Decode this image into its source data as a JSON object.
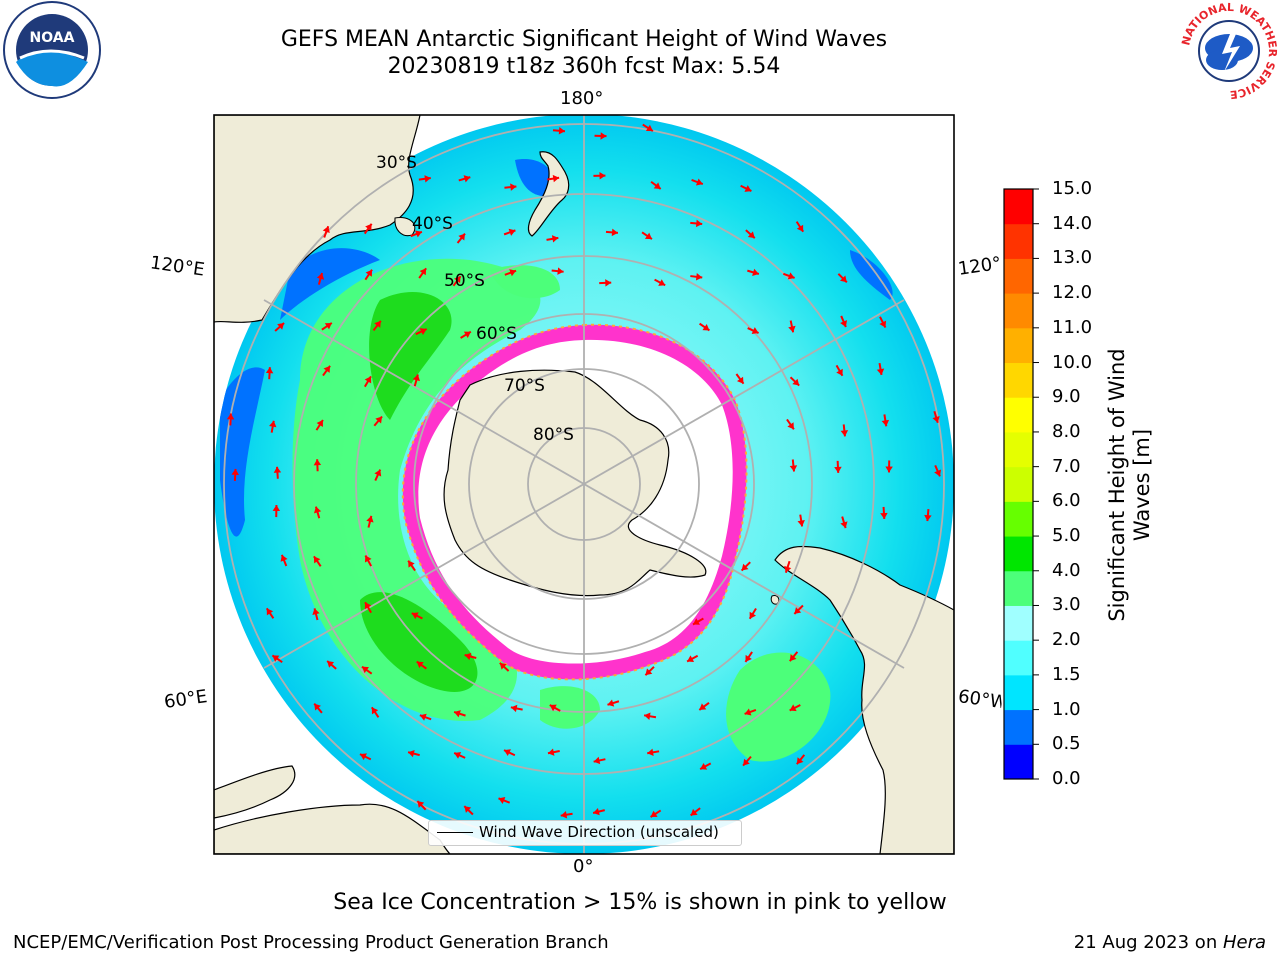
{
  "title": {
    "line1": "GEFS MEAN Antarctic Significant Height of Wind Waves",
    "line2": "20230819 t18z 360h fcst   Max: 5.54"
  },
  "logos": {
    "left": {
      "icon": "noaa-logo",
      "text": "NOAA"
    },
    "right": {
      "icon": "nws-logo",
      "ring_text": "NATIONAL WEATHER SERVICE"
    }
  },
  "map": {
    "projection": "South Polar Stereographic",
    "lon_labels": {
      "top": "180°",
      "bottom": "0°",
      "left_upper": "120°E",
      "left_lower": "60°E",
      "right_upper": "120°",
      "right_lower": "60°W"
    },
    "lat_labels": [
      "30°S",
      "40°S",
      "50°S",
      "60°S",
      "70°S",
      "80°S"
    ],
    "colors": {
      "land": "#efecd8",
      "ice_free_pole": "#ffffff",
      "gridline": "#b0b0b0",
      "arrow": "#ff0000",
      "sea_ice": "#ff33cc",
      "sea_ice_edge": "#ffaa33"
    }
  },
  "legend": {
    "label": "Wind Wave Direction (unscaled)"
  },
  "colorbar": {
    "label": "Significant Height of Wind Waves [m]",
    "ticks": [
      "0.0",
      "0.5",
      "1.0",
      "1.5",
      "2.0",
      "3.0",
      "4.0",
      "5.0",
      "6.0",
      "7.0",
      "8.0",
      "9.0",
      "10.0",
      "11.0",
      "12.0",
      "13.0",
      "14.0",
      "15.0"
    ],
    "colors": [
      "#0000ff",
      "#0072ff",
      "#00e5ff",
      "#50ffff",
      "#a0ffff",
      "#4cff7a",
      "#00e600",
      "#66ff00",
      "#ccff00",
      "#e5ff00",
      "#ffff00",
      "#ffd700",
      "#ffb000",
      "#ff8a00",
      "#ff6600",
      "#ff3300",
      "#ff0000"
    ]
  },
  "footnote": "Sea Ice Concentration > 15% is shown in pink to yellow",
  "credit": {
    "left": "NCEP/EMC/Verification Post Processing Product Generation Branch",
    "right_prefix": "21 Aug 2023 on ",
    "right_machine": "Hera"
  }
}
